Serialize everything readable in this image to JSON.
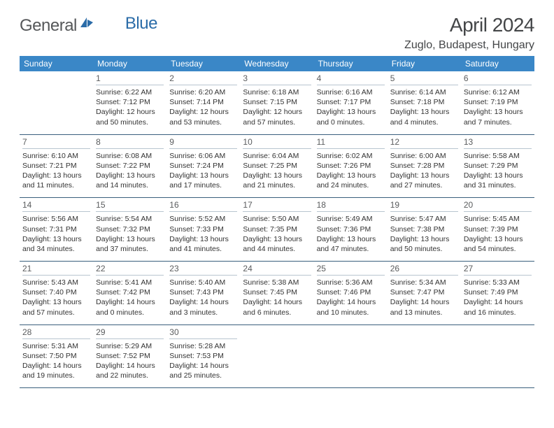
{
  "logo": {
    "part1": "General",
    "part2": "Blue"
  },
  "title": "April 2024",
  "location": "Zuglo, Budapest, Hungary",
  "header_bg": "#3a87c7",
  "border_color": "#3a5f7d",
  "weekdays": [
    "Sunday",
    "Monday",
    "Tuesday",
    "Wednesday",
    "Thursday",
    "Friday",
    "Saturday"
  ],
  "start_offset": 1,
  "days": [
    {
      "n": 1,
      "sr": "6:22 AM",
      "ss": "7:12 PM",
      "dl": "12 hours and 50 minutes."
    },
    {
      "n": 2,
      "sr": "6:20 AM",
      "ss": "7:14 PM",
      "dl": "12 hours and 53 minutes."
    },
    {
      "n": 3,
      "sr": "6:18 AM",
      "ss": "7:15 PM",
      "dl": "12 hours and 57 minutes."
    },
    {
      "n": 4,
      "sr": "6:16 AM",
      "ss": "7:17 PM",
      "dl": "13 hours and 0 minutes."
    },
    {
      "n": 5,
      "sr": "6:14 AM",
      "ss": "7:18 PM",
      "dl": "13 hours and 4 minutes."
    },
    {
      "n": 6,
      "sr": "6:12 AM",
      "ss": "7:19 PM",
      "dl": "13 hours and 7 minutes."
    },
    {
      "n": 7,
      "sr": "6:10 AM",
      "ss": "7:21 PM",
      "dl": "13 hours and 11 minutes."
    },
    {
      "n": 8,
      "sr": "6:08 AM",
      "ss": "7:22 PM",
      "dl": "13 hours and 14 minutes."
    },
    {
      "n": 9,
      "sr": "6:06 AM",
      "ss": "7:24 PM",
      "dl": "13 hours and 17 minutes."
    },
    {
      "n": 10,
      "sr": "6:04 AM",
      "ss": "7:25 PM",
      "dl": "13 hours and 21 minutes."
    },
    {
      "n": 11,
      "sr": "6:02 AM",
      "ss": "7:26 PM",
      "dl": "13 hours and 24 minutes."
    },
    {
      "n": 12,
      "sr": "6:00 AM",
      "ss": "7:28 PM",
      "dl": "13 hours and 27 minutes."
    },
    {
      "n": 13,
      "sr": "5:58 AM",
      "ss": "7:29 PM",
      "dl": "13 hours and 31 minutes."
    },
    {
      "n": 14,
      "sr": "5:56 AM",
      "ss": "7:31 PM",
      "dl": "13 hours and 34 minutes."
    },
    {
      "n": 15,
      "sr": "5:54 AM",
      "ss": "7:32 PM",
      "dl": "13 hours and 37 minutes."
    },
    {
      "n": 16,
      "sr": "5:52 AM",
      "ss": "7:33 PM",
      "dl": "13 hours and 41 minutes."
    },
    {
      "n": 17,
      "sr": "5:50 AM",
      "ss": "7:35 PM",
      "dl": "13 hours and 44 minutes."
    },
    {
      "n": 18,
      "sr": "5:49 AM",
      "ss": "7:36 PM",
      "dl": "13 hours and 47 minutes."
    },
    {
      "n": 19,
      "sr": "5:47 AM",
      "ss": "7:38 PM",
      "dl": "13 hours and 50 minutes."
    },
    {
      "n": 20,
      "sr": "5:45 AM",
      "ss": "7:39 PM",
      "dl": "13 hours and 54 minutes."
    },
    {
      "n": 21,
      "sr": "5:43 AM",
      "ss": "7:40 PM",
      "dl": "13 hours and 57 minutes."
    },
    {
      "n": 22,
      "sr": "5:41 AM",
      "ss": "7:42 PM",
      "dl": "14 hours and 0 minutes."
    },
    {
      "n": 23,
      "sr": "5:40 AM",
      "ss": "7:43 PM",
      "dl": "14 hours and 3 minutes."
    },
    {
      "n": 24,
      "sr": "5:38 AM",
      "ss": "7:45 PM",
      "dl": "14 hours and 6 minutes."
    },
    {
      "n": 25,
      "sr": "5:36 AM",
      "ss": "7:46 PM",
      "dl": "14 hours and 10 minutes."
    },
    {
      "n": 26,
      "sr": "5:34 AM",
      "ss": "7:47 PM",
      "dl": "14 hours and 13 minutes."
    },
    {
      "n": 27,
      "sr": "5:33 AM",
      "ss": "7:49 PM",
      "dl": "14 hours and 16 minutes."
    },
    {
      "n": 28,
      "sr": "5:31 AM",
      "ss": "7:50 PM",
      "dl": "14 hours and 19 minutes."
    },
    {
      "n": 29,
      "sr": "5:29 AM",
      "ss": "7:52 PM",
      "dl": "14 hours and 22 minutes."
    },
    {
      "n": 30,
      "sr": "5:28 AM",
      "ss": "7:53 PM",
      "dl": "14 hours and 25 minutes."
    }
  ],
  "labels": {
    "sunrise": "Sunrise:",
    "sunset": "Sunset:",
    "daylight": "Daylight:"
  }
}
